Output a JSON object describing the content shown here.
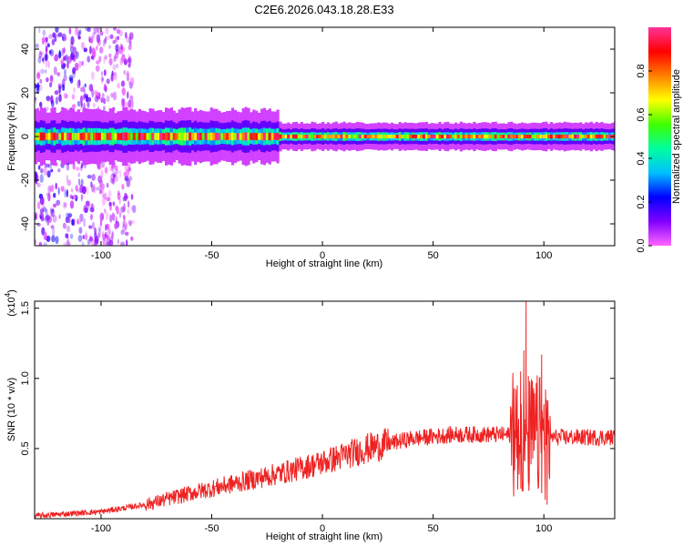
{
  "title": "C2E6.2026.043.18.28.E33",
  "chart_data": [
    {
      "type": "heatmap",
      "xlabel": "Height of straight line (km)",
      "ylabel": "Frequency (Hz)",
      "xlim": [
        -130,
        132
      ],
      "ylim": [
        -50,
        50
      ],
      "xticks": [
        -100,
        -50,
        0,
        50,
        100
      ],
      "xtick_labels": [
        "-100",
        "-50",
        "0",
        "50",
        "100"
      ],
      "yticks": [
        -40,
        -20,
        0,
        20,
        40
      ],
      "ytick_labels": [
        "-40",
        "-20",
        "0",
        "20",
        "40"
      ],
      "colorbar": {
        "label": "Normalized spectral amplitude",
        "range": [
          0,
          1
        ],
        "ticks": [
          0.0,
          0.2,
          0.4,
          0.6,
          0.8
        ],
        "tick_labels": [
          "0.0",
          "0.2",
          "0.4",
          "0.6",
          "0.8"
        ],
        "colors": [
          "#ff66ff",
          "#8000ff",
          "#0000ff",
          "#00c0ff",
          "#00ffa0",
          "#40ff00",
          "#ffff00",
          "#ff8000",
          "#ff0000",
          "#ff3399"
        ]
      },
      "band_center_hz": 0,
      "noise_region_km": [
        -130,
        -85
      ]
    },
    {
      "type": "line",
      "xlabel": "Height of straight line (km)",
      "ylabel": "SNR (10 * v/v)",
      "scale_label": "(x10",
      "scale_exp": "4",
      "scale_suffix": ")",
      "xlim": [
        -130,
        132
      ],
      "ylim": [
        0,
        1.55
      ],
      "xticks": [
        -100,
        -50,
        0,
        50,
        100
      ],
      "xtick_labels": [
        "-100",
        "-50",
        "0",
        "50",
        "100"
      ],
      "yticks": [
        0.5,
        1.0,
        1.5
      ],
      "ytick_labels": [
        "0.5",
        "1.0",
        "1.5"
      ],
      "line_color": "#ee2222",
      "trend": [
        {
          "x": -130,
          "y": 0.02
        },
        {
          "x": -100,
          "y": 0.05
        },
        {
          "x": -80,
          "y": 0.1
        },
        {
          "x": -60,
          "y": 0.18
        },
        {
          "x": -40,
          "y": 0.25
        },
        {
          "x": -20,
          "y": 0.32
        },
        {
          "x": 0,
          "y": 0.4
        },
        {
          "x": 20,
          "y": 0.5
        },
        {
          "x": 40,
          "y": 0.57
        },
        {
          "x": 60,
          "y": 0.6
        },
        {
          "x": 80,
          "y": 0.6
        },
        {
          "x": 100,
          "y": 0.58
        },
        {
          "x": 132,
          "y": 0.58
        }
      ],
      "peaks": [
        {
          "x": 88,
          "y": 0.95
        },
        {
          "x": 89.5,
          "y": 1.05
        },
        {
          "x": 91,
          "y": 1.2
        },
        {
          "x": 92,
          "y": 1.55
        },
        {
          "x": 93,
          "y": 0.25
        },
        {
          "x": 99,
          "y": 1.17
        },
        {
          "x": 101.5,
          "y": 0.1
        }
      ]
    }
  ]
}
